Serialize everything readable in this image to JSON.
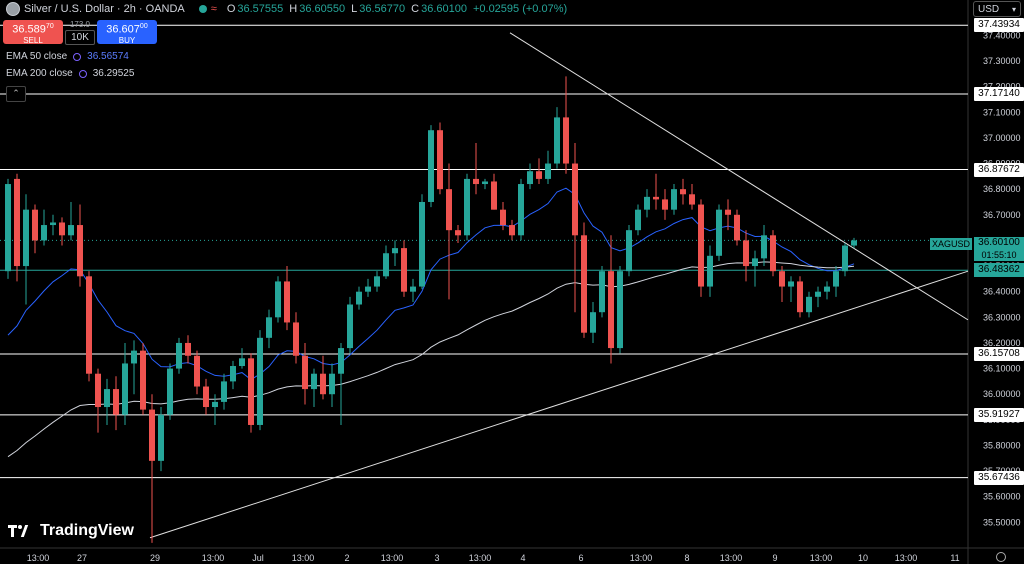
{
  "header": {
    "title": "Silver / U.S. Dollar · 2h · OANDA",
    "ohlc": [
      {
        "k": "O",
        "v": "36.57555"
      },
      {
        "k": "H",
        "v": "36.60550"
      },
      {
        "k": "L",
        "v": "36.56770"
      },
      {
        "k": "C",
        "v": "36.60100"
      }
    ],
    "change": "+0.02595 (+0.07%)"
  },
  "trade": {
    "sell_price": "36.589",
    "sell_sup": "70",
    "sell_label": "SELL",
    "buy_price": "36.607",
    "buy_sup": "00",
    "buy_label": "BUY",
    "spread": "173.0",
    "qty": "10K"
  },
  "indicators": [
    {
      "label": "EMA 50 close",
      "value": "36.56574"
    },
    {
      "label": "EMA 200 close",
      "value": "36.29525"
    }
  ],
  "currency": "USD",
  "current": {
    "symbol": "XAGUSD",
    "price": "36.60100",
    "countdown": "01:55:10"
  },
  "level_tags": [
    "37.43934",
    "37.17140",
    "36.87672",
    "36.48362",
    "36.15708",
    "35.91927",
    "35.67436"
  ],
  "brand": "TradingView",
  "colors": {
    "up": "#26a69a",
    "down": "#ef5350",
    "ema50": "#2962ff",
    "ema200": "#d1d4dc",
    "bg": "#000000"
  },
  "chart_data": {
    "type": "candlestick",
    "ylim": [
      35.4,
      37.46
    ],
    "yticks": [
      37.4,
      37.3,
      37.2,
      37.1,
      37.0,
      36.9,
      36.8,
      36.7,
      36.6,
      36.5,
      36.4,
      36.3,
      36.2,
      36.1,
      36.0,
      35.9,
      35.8,
      35.7,
      35.6,
      35.5
    ],
    "xticks": [
      "13:00",
      "27",
      "29",
      "13:00",
      "Jul",
      "13:00",
      "2",
      "13:00",
      "3",
      "13:00",
      "4",
      "6",
      "13:00",
      "8",
      "13:00",
      "9",
      "13:00",
      "10",
      "13:00",
      "11"
    ],
    "horizontal_levels": [
      {
        "value": 37.43934,
        "color": "#ffffff"
      },
      {
        "value": 37.1714,
        "color": "#ffffff"
      },
      {
        "value": 36.87672,
        "color": "#ffffff"
      },
      {
        "value": 36.48362,
        "color": "#26a69a"
      },
      {
        "value": 36.15708,
        "color": "#ffffff"
      },
      {
        "value": 35.91927,
        "color": "#ffffff"
      },
      {
        "value": 35.67436,
        "color": "#ffffff"
      }
    ],
    "trendlines": [
      {
        "from": [
          0,
          35.44
        ],
        "to": [
          1,
          36.48
        ],
        "label": "ascending support"
      },
      {
        "from": [
          0,
          37.41
        ],
        "to": [
          1,
          36.29
        ],
        "label": "descending resistance"
      }
    ],
    "candles": [
      [
        36.48,
        36.84,
        36.45,
        36.82
      ],
      [
        36.84,
        36.86,
        36.44,
        36.5
      ],
      [
        36.5,
        36.78,
        36.35,
        36.72
      ],
      [
        36.72,
        36.74,
        36.55,
        36.6
      ],
      [
        36.6,
        36.72,
        36.58,
        36.66
      ],
      [
        36.66,
        36.7,
        36.62,
        36.67
      ],
      [
        36.67,
        36.69,
        36.58,
        36.62
      ],
      [
        36.62,
        36.75,
        36.6,
        36.66
      ],
      [
        36.66,
        36.74,
        36.42,
        36.46
      ],
      [
        36.46,
        36.48,
        36.05,
        36.08
      ],
      [
        36.08,
        36.1,
        35.85,
        35.95
      ],
      [
        35.95,
        36.06,
        35.88,
        36.02
      ],
      [
        36.02,
        36.07,
        35.86,
        35.92
      ],
      [
        35.92,
        36.2,
        35.88,
        36.12
      ],
      [
        36.12,
        36.21,
        36.0,
        36.17
      ],
      [
        36.17,
        36.2,
        35.92,
        35.94
      ],
      [
        35.94,
        36.0,
        35.42,
        35.74
      ],
      [
        35.74,
        35.95,
        35.7,
        35.92
      ],
      [
        35.92,
        36.12,
        35.9,
        36.1
      ],
      [
        36.1,
        36.22,
        36.08,
        36.2
      ],
      [
        36.2,
        36.23,
        36.12,
        36.15
      ],
      [
        36.15,
        36.17,
        36.0,
        36.03
      ],
      [
        36.03,
        36.06,
        35.92,
        35.95
      ],
      [
        35.95,
        36.0,
        35.88,
        35.97
      ],
      [
        35.97,
        36.08,
        35.94,
        36.05
      ],
      [
        36.05,
        36.13,
        36.02,
        36.11
      ],
      [
        36.11,
        36.18,
        36.1,
        36.14
      ],
      [
        36.14,
        36.16,
        35.85,
        35.88
      ],
      [
        35.88,
        36.25,
        35.86,
        36.22
      ],
      [
        36.22,
        36.33,
        36.18,
        36.3
      ],
      [
        36.3,
        36.46,
        36.28,
        36.44
      ],
      [
        36.44,
        36.5,
        36.25,
        36.28
      ],
      [
        36.28,
        36.32,
        36.12,
        36.15
      ],
      [
        36.15,
        36.2,
        35.96,
        36.02
      ],
      [
        36.02,
        36.1,
        35.95,
        36.08
      ],
      [
        36.08,
        36.15,
        35.98,
        36.0
      ],
      [
        36.0,
        36.12,
        35.95,
        36.08
      ],
      [
        36.08,
        36.2,
        35.88,
        36.18
      ],
      [
        36.18,
        36.38,
        36.16,
        36.35
      ],
      [
        36.35,
        36.42,
        36.33,
        36.4
      ],
      [
        36.4,
        36.45,
        36.38,
        36.42
      ],
      [
        36.42,
        36.48,
        36.4,
        36.46
      ],
      [
        36.46,
        36.58,
        36.45,
        36.55
      ],
      [
        36.55,
        36.6,
        36.5,
        36.57
      ],
      [
        36.57,
        36.6,
        36.38,
        36.4
      ],
      [
        36.4,
        36.45,
        36.36,
        36.42
      ],
      [
        36.42,
        36.78,
        36.41,
        36.75
      ],
      [
        36.75,
        37.05,
        36.73,
        37.03
      ],
      [
        37.03,
        37.06,
        36.78,
        36.8
      ],
      [
        36.8,
        36.9,
        36.37,
        36.64
      ],
      [
        36.64,
        36.66,
        36.59,
        36.62
      ],
      [
        36.62,
        36.86,
        36.6,
        36.84
      ],
      [
        36.84,
        36.98,
        36.78,
        36.82
      ],
      [
        36.82,
        36.84,
        36.8,
        36.83
      ],
      [
        36.83,
        36.86,
        36.72,
        36.72
      ],
      [
        36.72,
        36.75,
        36.64,
        36.66
      ],
      [
        36.66,
        36.68,
        36.6,
        36.62
      ],
      [
        36.62,
        36.84,
        36.6,
        36.82
      ],
      [
        36.82,
        36.9,
        36.8,
        36.87
      ],
      [
        36.87,
        36.92,
        36.82,
        36.84
      ],
      [
        36.84,
        36.95,
        36.82,
        36.9
      ],
      [
        36.9,
        37.12,
        36.88,
        37.08
      ],
      [
        37.08,
        37.24,
        36.86,
        36.9
      ],
      [
        36.9,
        36.98,
        36.32,
        36.62
      ],
      [
        36.62,
        36.67,
        36.22,
        36.24
      ],
      [
        36.24,
        36.36,
        36.2,
        36.32
      ],
      [
        36.32,
        36.5,
        36.3,
        36.48
      ],
      [
        36.48,
        36.62,
        36.12,
        36.18
      ],
      [
        36.18,
        36.5,
        36.16,
        36.48
      ],
      [
        36.48,
        36.66,
        36.46,
        36.64
      ],
      [
        36.64,
        36.74,
        36.62,
        36.72
      ],
      [
        36.72,
        36.8,
        36.69,
        36.77
      ],
      [
        36.77,
        36.86,
        36.72,
        36.76
      ],
      [
        36.76,
        36.8,
        36.68,
        36.72
      ],
      [
        36.72,
        36.82,
        36.7,
        36.8
      ],
      [
        36.8,
        36.84,
        36.74,
        36.78
      ],
      [
        36.78,
        36.82,
        36.72,
        36.74
      ],
      [
        36.74,
        36.76,
        36.38,
        36.42
      ],
      [
        36.42,
        36.58,
        36.38,
        36.54
      ],
      [
        36.54,
        36.74,
        36.52,
        36.72
      ],
      [
        36.72,
        36.76,
        36.64,
        36.7
      ],
      [
        36.7,
        36.72,
        36.58,
        36.6
      ],
      [
        36.6,
        36.64,
        36.44,
        36.5
      ],
      [
        36.5,
        36.56,
        36.42,
        36.53
      ],
      [
        36.53,
        36.66,
        36.5,
        36.62
      ],
      [
        36.62,
        36.64,
        36.46,
        36.48
      ],
      [
        36.48,
        36.5,
        36.36,
        36.42
      ],
      [
        36.42,
        36.46,
        36.36,
        36.44
      ],
      [
        36.44,
        36.46,
        36.3,
        36.32
      ],
      [
        36.32,
        36.4,
        36.3,
        36.38
      ],
      [
        36.38,
        36.42,
        36.34,
        36.4
      ],
      [
        36.4,
        36.44,
        36.37,
        36.42
      ],
      [
        36.42,
        36.5,
        36.38,
        36.48
      ],
      [
        36.48,
        36.59,
        36.46,
        36.58
      ],
      [
        36.58,
        36.61,
        36.57,
        36.6
      ]
    ]
  }
}
